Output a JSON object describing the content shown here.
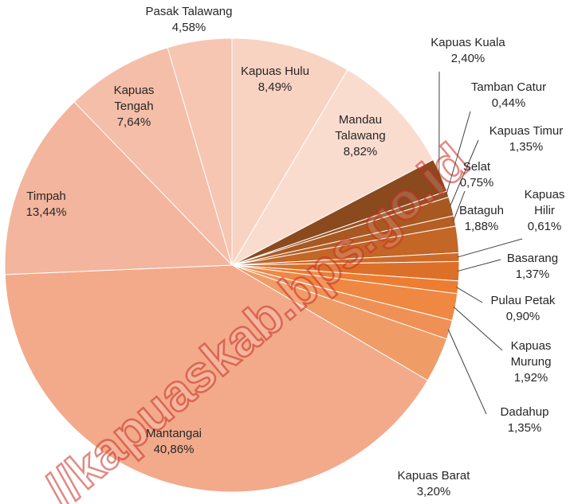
{
  "chart_data": {
    "type": "pie",
    "categories": [
      "Kapuas Hulu",
      "Mandau Talawang",
      "Kapuas Kuala",
      "Tamban Catur",
      "Kapuas Timur",
      "Selat",
      "Bataguh",
      "Kapuas Hilir",
      "Basarang",
      "Pulau Petak",
      "Kapuas Murung",
      "Dadahup",
      "Kapuas Barat",
      "Mantangai",
      "Timpah",
      "Kapuas Tengah",
      "Pasak Talawang"
    ],
    "values": [
      8.49,
      8.82,
      2.4,
      0.44,
      1.35,
      0.75,
      1.88,
      0.61,
      1.37,
      0.9,
      1.92,
      1.35,
      3.2,
      40.86,
      13.44,
      7.64,
      4.58
    ],
    "value_labels": [
      "8,49%",
      "8,82%",
      "2,40%",
      "0,44%",
      "1,35%",
      "0,75%",
      "1,88%",
      "0,61%",
      "1,37%",
      "0,90%",
      "1,92%",
      "1,35%",
      "3,20%",
      "40,86%",
      "13,44%",
      "7,64%",
      "4,58%"
    ],
    "colors": [
      "#f8d3c2",
      "#fadccf",
      "#8a4a1e",
      "#9a5121",
      "#a85922",
      "#b55f24",
      "#c36626",
      "#cf6b28",
      "#dc7029",
      "#ed7d31",
      "#ee8843",
      "#ef9156",
      "#f09c66",
      "#f2aa8b",
      "#f3b59d",
      "#f5bea9",
      "#f6c6b3"
    ],
    "watermark": "//kapuaskab.bps.go.id"
  }
}
